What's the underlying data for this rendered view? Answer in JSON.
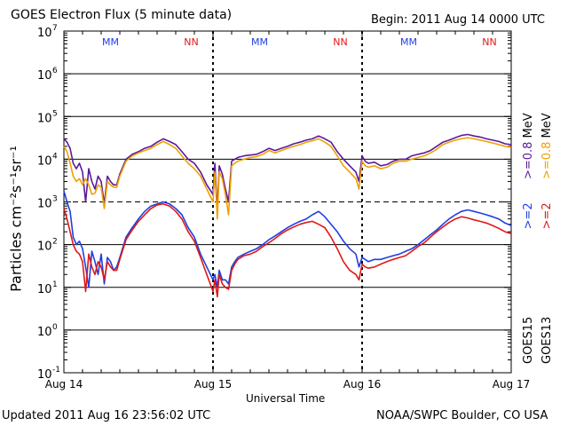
{
  "header": {
    "title": "GOES Electron Flux (5 minute data)",
    "begin": "Begin: 2011 Aug 14 0000 UTC"
  },
  "footer": {
    "updated": "Updated 2011 Aug 16 23:56:02 UTC",
    "credit": "NOAA/SWPC Boulder, CO USA"
  },
  "legend": {
    "line1_a": "GOES15",
    "line1_b": ">=2",
    "line1_c": ">=0.8",
    "line2_a": "GOES13",
    "line2_b": ">=2",
    "line2_c": ">=0.8",
    "unit": "MeV"
  },
  "colors": {
    "goes15_2": "#1f3fe0",
    "goes13_2": "#e01818",
    "goes15_08": "#5a1a9a",
    "goes13_08": "#f0a000"
  },
  "chart_data": {
    "type": "line",
    "title": "GOES Electron Flux (5 minute data)",
    "xlabel": "Universal Time",
    "ylabel": "Particles cm⁻²s⁻¹sr⁻¹",
    "y_scale": "log",
    "ylim": [
      0.1,
      10000000
    ],
    "yticks": [
      0.1,
      1,
      10,
      100,
      1000,
      10000,
      100000,
      1000000,
      10000000
    ],
    "ytick_exponents": [
      "-1",
      "0",
      "1",
      "2",
      "3",
      "4",
      "5",
      "6",
      "7"
    ],
    "xlim": [
      0,
      72
    ],
    "x_unit": "hours since Begin",
    "xtick_hours": [
      0,
      24,
      48,
      72
    ],
    "xtick_labels": [
      "Aug 14",
      "Aug 15",
      "Aug 16",
      "Aug 17"
    ],
    "alert_threshold": 1000,
    "markers": [
      {
        "hour": 7.5,
        "label": "MM",
        "color": "#1f3fe0"
      },
      {
        "hour": 20.5,
        "label": "NN",
        "color": "#e01818"
      },
      {
        "hour": 31.5,
        "label": "MM",
        "color": "#1f3fe0"
      },
      {
        "hour": 44.5,
        "label": "NN",
        "color": "#e01818"
      },
      {
        "hour": 55.5,
        "label": "MM",
        "color": "#1f3fe0"
      },
      {
        "hour": 68.5,
        "label": "NN",
        "color": "#e01818"
      }
    ],
    "series": [
      {
        "name": "GOES15 >=0.8 MeV",
        "color": "#5a1a9a",
        "x": [
          0,
          0.5,
          1,
          1.5,
          2,
          2.5,
          3,
          3.5,
          4,
          4.5,
          5,
          5.5,
          6,
          6.5,
          7,
          7.5,
          8,
          8.5,
          9,
          10,
          11,
          12,
          13,
          14,
          15,
          16,
          17,
          18,
          19,
          20,
          21,
          22,
          23,
          24,
          24.3,
          24.7,
          25,
          25.5,
          26,
          26.5,
          27,
          27.5,
          28,
          29,
          30,
          31,
          32,
          33,
          34,
          35,
          36,
          37,
          38,
          39,
          40,
          41,
          42,
          43,
          44,
          45,
          46,
          47,
          47.5,
          48,
          48.5,
          49,
          50,
          51,
          52,
          53,
          54,
          55,
          56,
          57,
          58,
          59,
          60,
          61,
          62,
          63,
          64,
          65,
          66,
          67,
          68,
          69,
          70,
          71,
          72
        ],
        "y": [
          30000,
          25000,
          18000,
          8000,
          6000,
          8000,
          5000,
          1000,
          6000,
          3000,
          2000,
          4000,
          3000,
          900,
          4000,
          3000,
          2500,
          2500,
          4500,
          10000,
          13000,
          15000,
          18000,
          20000,
          25000,
          30000,
          26000,
          22000,
          15000,
          10000,
          8000,
          5000,
          2500,
          1500,
          8000,
          600,
          7000,
          4500,
          2000,
          1000,
          9000,
          10000,
          11000,
          12000,
          12500,
          13000,
          15000,
          18000,
          16000,
          18000,
          20000,
          23000,
          25000,
          28000,
          30000,
          35000,
          30000,
          25000,
          15000,
          10000,
          7000,
          5000,
          3000,
          12000,
          9000,
          8000,
          8500,
          7000,
          7500,
          9000,
          10000,
          10000,
          12000,
          13000,
          14000,
          16000,
          20000,
          25000,
          28000,
          32000,
          36000,
          38000,
          35000,
          33000,
          30000,
          28000,
          26000,
          23000,
          22000
        ]
      },
      {
        "name": "GOES13 >=0.8 MeV",
        "color": "#f0a000",
        "x": [
          0,
          0.5,
          1,
          1.5,
          2,
          2.5,
          3,
          3.5,
          4,
          4.5,
          5,
          5.5,
          6,
          6.5,
          7,
          7.5,
          8,
          8.5,
          9,
          10,
          11,
          12,
          13,
          14,
          15,
          16,
          17,
          18,
          19,
          20,
          21,
          22,
          23,
          24,
          24.3,
          24.7,
          25,
          25.5,
          26,
          26.5,
          27,
          27.5,
          28,
          29,
          30,
          31,
          32,
          33,
          34,
          35,
          36,
          37,
          38,
          39,
          40,
          41,
          42,
          43,
          44,
          45,
          46,
          47,
          47.5,
          48,
          48.5,
          49,
          50,
          51,
          52,
          53,
          54,
          55,
          56,
          57,
          58,
          59,
          60,
          61,
          62,
          63,
          64,
          65,
          66,
          67,
          68,
          69,
          70,
          71,
          72
        ],
        "y": [
          20000,
          15000,
          8000,
          4000,
          3000,
          3500,
          2500,
          3500,
          2500,
          1500,
          1600,
          2500,
          2200,
          700,
          3000,
          2500,
          2200,
          2200,
          4000,
          9000,
          12000,
          14000,
          16000,
          18000,
          22000,
          26000,
          22000,
          18000,
          12000,
          8000,
          6000,
          4000,
          2000,
          1000,
          5000,
          400,
          5000,
          3500,
          1500,
          500,
          7000,
          8000,
          9000,
          10000,
          11000,
          11500,
          13000,
          16000,
          14000,
          16000,
          18000,
          20000,
          22000,
          25000,
          27000,
          30000,
          25000,
          20000,
          12000,
          7000,
          5000,
          3500,
          2000,
          9000,
          7000,
          6500,
          7000,
          6000,
          6500,
          8000,
          9000,
          9000,
          10000,
          11000,
          12000,
          14000,
          17000,
          22000,
          25000,
          28000,
          30000,
          32000,
          30000,
          28000,
          26000,
          24000,
          22000,
          20000,
          19000
        ]
      },
      {
        "name": "GOES15 >=2 MeV",
        "color": "#1f3fe0",
        "x": [
          0,
          0.5,
          1,
          1.5,
          2,
          2.5,
          3,
          3.5,
          4,
          4.5,
          5,
          5.5,
          6,
          6.5,
          7,
          7.5,
          8,
          8.5,
          9,
          10,
          11,
          12,
          13,
          14,
          15,
          16,
          17,
          18,
          19,
          20,
          21,
          22,
          23,
          24,
          24.3,
          24.7,
          25,
          25.5,
          26,
          26.5,
          27,
          27.5,
          28,
          29,
          30,
          31,
          32,
          33,
          34,
          35,
          36,
          37,
          38,
          39,
          40,
          41,
          42,
          43,
          44,
          45,
          46,
          47,
          47.5,
          48,
          48.5,
          49,
          50,
          51,
          52,
          53,
          54,
          55,
          56,
          57,
          58,
          59,
          60,
          61,
          62,
          63,
          64,
          65,
          66,
          67,
          68,
          69,
          70,
          71,
          72
        ],
        "y": [
          1800,
          1000,
          600,
          150,
          100,
          120,
          80,
          30,
          10,
          70,
          40,
          20,
          60,
          12,
          50,
          40,
          25,
          30,
          50,
          150,
          250,
          400,
          600,
          800,
          900,
          1000,
          900,
          700,
          500,
          250,
          150,
          60,
          30,
          15,
          20,
          10,
          25,
          15,
          15,
          12,
          30,
          40,
          50,
          60,
          70,
          80,
          100,
          130,
          160,
          200,
          250,
          300,
          350,
          400,
          500,
          600,
          450,
          300,
          200,
          120,
          80,
          60,
          30,
          50,
          45,
          40,
          45,
          45,
          50,
          55,
          60,
          70,
          80,
          100,
          130,
          170,
          220,
          300,
          400,
          500,
          600,
          650,
          600,
          550,
          500,
          450,
          400,
          320,
          280
        ]
      },
      {
        "name": "GOES13 >=2 MeV",
        "color": "#e01818",
        "x": [
          0,
          0.5,
          1,
          1.5,
          2,
          2.5,
          3,
          3.5,
          4,
          4.5,
          5,
          5.5,
          6,
          6.5,
          7,
          7.5,
          8,
          8.5,
          9,
          10,
          11,
          12,
          13,
          14,
          15,
          16,
          17,
          18,
          19,
          20,
          21,
          22,
          23,
          24,
          24.3,
          24.7,
          25,
          25.5,
          26,
          26.5,
          27,
          27.5,
          28,
          29,
          30,
          31,
          32,
          33,
          34,
          35,
          36,
          37,
          38,
          39,
          40,
          41,
          42,
          43,
          44,
          45,
          46,
          47,
          47.5,
          48,
          48.5,
          49,
          50,
          51,
          52,
          53,
          54,
          55,
          56,
          57,
          58,
          59,
          60,
          61,
          62,
          63,
          64,
          65,
          66,
          67,
          68,
          69,
          70,
          71,
          72
        ],
        "y": [
          700,
          400,
          200,
          100,
          70,
          60,
          40,
          8,
          60,
          30,
          20,
          40,
          30,
          15,
          40,
          30,
          25,
          25,
          45,
          130,
          220,
          350,
          500,
          700,
          850,
          900,
          800,
          600,
          400,
          200,
          120,
          50,
          20,
          8,
          15,
          6,
          20,
          12,
          10,
          9,
          25,
          35,
          45,
          55,
          60,
          70,
          90,
          110,
          140,
          180,
          220,
          260,
          300,
          330,
          350,
          300,
          250,
          150,
          80,
          40,
          25,
          20,
          15,
          35,
          30,
          28,
          30,
          35,
          40,
          45,
          50,
          55,
          70,
          90,
          110,
          150,
          200,
          260,
          330,
          400,
          450,
          420,
          380,
          350,
          320,
          280,
          240,
          200,
          180
        ]
      }
    ]
  }
}
